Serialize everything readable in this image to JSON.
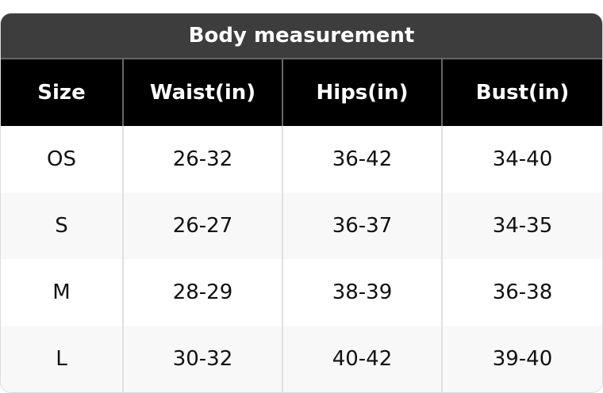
{
  "title": "Body measurement",
  "headers": [
    "Size",
    "Waist(in)",
    "Hips(in)",
    "Bust(in)"
  ],
  "rows": [
    [
      "OS",
      "26-32",
      "36-42",
      "34-40"
    ],
    [
      "S",
      "26-27",
      "36-37",
      "34-35"
    ],
    [
      "M",
      "28-29",
      "38-39",
      "36-38"
    ],
    [
      "L",
      "30-32",
      "40-42",
      "39-40"
    ]
  ],
  "colors": {
    "title_bg": "#3d3d3d",
    "header_bg": "#000000",
    "alt_row_bg": "#f8f8f8"
  }
}
